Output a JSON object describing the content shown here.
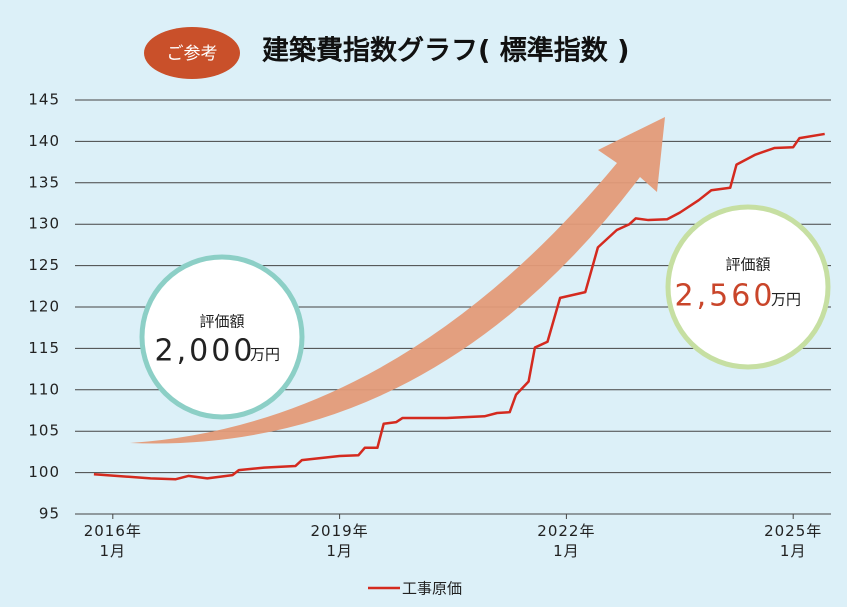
{
  "chart_data": {
    "type": "line",
    "badge": "ご参考",
    "title": "建築費指数グラフ( 標準指数 )",
    "x": [
      "2015-10",
      "2016-07",
      "2016-11",
      "2017-01",
      "2017-04",
      "2017-08",
      "2017-09",
      "2018-01",
      "2018-06",
      "2018-07",
      "2019-01",
      "2019-04",
      "2019-05",
      "2019-07",
      "2019-08",
      "2019-10",
      "2019-11",
      "2020-06",
      "2020-12",
      "2021-02",
      "2021-04",
      "2021-05",
      "2021-07",
      "2021-08",
      "2021-10",
      "2021-12",
      "2022-04",
      "2022-06",
      "2022-09",
      "2022-11",
      "2022-12",
      "2023-02",
      "2023-05",
      "2023-07",
      "2023-10",
      "2023-12",
      "2024-03",
      "2024-04",
      "2024-07",
      "2024-10",
      "2025-01",
      "2025-02",
      "2025-06"
    ],
    "series": [
      {
        "name": "工事原価",
        "color": "#d42a1f",
        "values": [
          99.8,
          99.3,
          99.2,
          99.6,
          99.3,
          99.7,
          100.3,
          100.6,
          100.8,
          101.5,
          102.0,
          102.1,
          103.0,
          103.0,
          105.9,
          106.1,
          106.6,
          106.6,
          106.8,
          107.2,
          107.3,
          109.4,
          111.0,
          115.1,
          115.8,
          121.1,
          121.8,
          127.2,
          129.3,
          130.0,
          130.7,
          130.5,
          130.6,
          131.4,
          132.9,
          134.1,
          134.4,
          137.2,
          138.4,
          139.2,
          139.3,
          140.4,
          140.9
        ]
      }
    ],
    "xlim": [
      "2015-07",
      "2025-07"
    ],
    "xticks": [
      {
        "value": "2016-01",
        "label": "2016年\n1月"
      },
      {
        "value": "2019-01",
        "label": "2019年\n1月"
      },
      {
        "value": "2022-01",
        "label": "2022年\n1月"
      },
      {
        "value": "2025-01",
        "label": "2025年\n1月"
      }
    ],
    "ylim": [
      95,
      145
    ],
    "yticks": [
      95,
      100,
      105,
      110,
      115,
      120,
      125,
      130,
      135,
      140,
      145
    ],
    "grid": true,
    "annotations": [
      {
        "label": "評価額",
        "amount": "2,000",
        "unit": "万円"
      },
      {
        "label": "評価額",
        "amount": "2,560",
        "unit": "万円"
      }
    ]
  }
}
